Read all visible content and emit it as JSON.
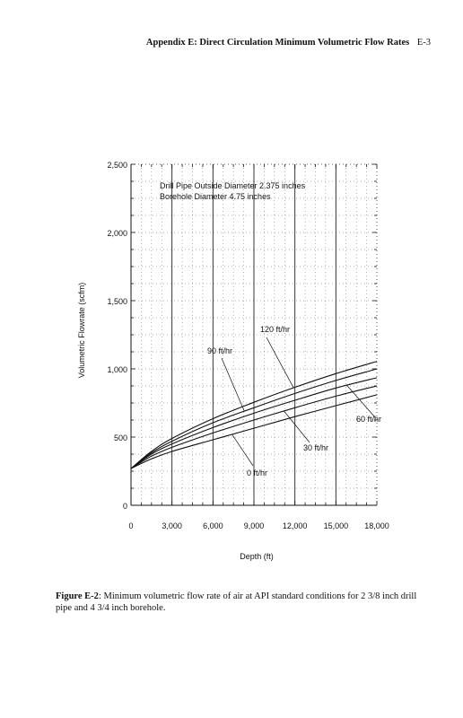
{
  "header": {
    "title": "Appendix E: Direct Circulation Minimum Volumetric Flow Rates",
    "page": "E-3"
  },
  "caption": {
    "label": "Figure E-2",
    "text": ": Minimum volumetric flow rate of air at API standard conditions for 2 3/8 inch drill pipe and 4 3/4 inch borehole."
  },
  "chart_data": {
    "type": "line",
    "xlabel": "Depth (ft)",
    "ylabel": "Volumetric Flowrate (scfm)",
    "xlim": [
      0,
      18000
    ],
    "ylim": [
      0,
      2500
    ],
    "x_ticks": [
      "0",
      "3,000",
      "6,000",
      "9,000",
      "12,000",
      "15,000",
      "18,000"
    ],
    "y_ticks": [
      "0",
      "500",
      "1,000",
      "1,500",
      "2,000",
      "2,500"
    ],
    "grid": "dotted",
    "annotations": [
      "Drill Pipe Outside Diameter 2.375 inches",
      "Borehole Diameter 4.75 inches"
    ],
    "series": [
      {
        "name": "0 ft/hr",
        "x": [
          0,
          1500,
          3000,
          6000,
          9000,
          12000,
          15000,
          18000
        ],
        "values": [
          270,
          340,
          395,
          480,
          565,
          650,
          730,
          810
        ]
      },
      {
        "name": "30 ft/hr",
        "x": [
          0,
          1500,
          3000,
          6000,
          9000,
          12000,
          15000,
          18000
        ],
        "values": [
          270,
          360,
          425,
          530,
          625,
          715,
          800,
          875
        ]
      },
      {
        "name": "60 ft/hr",
        "x": [
          0,
          1500,
          3000,
          6000,
          9000,
          12000,
          15000,
          18000
        ],
        "values": [
          270,
          375,
          450,
          570,
          675,
          770,
          860,
          935
        ]
      },
      {
        "name": "90 ft/hr",
        "x": [
          0,
          1500,
          3000,
          6000,
          9000,
          12000,
          15000,
          18000
        ],
        "values": [
          270,
          385,
          470,
          605,
          715,
          820,
          915,
          1000
        ]
      },
      {
        "name": "120 ft/hr",
        "x": [
          0,
          1500,
          3000,
          6000,
          9000,
          12000,
          15000,
          18000
        ],
        "values": [
          270,
          395,
          490,
          635,
          755,
          865,
          965,
          1055
        ]
      }
    ]
  }
}
